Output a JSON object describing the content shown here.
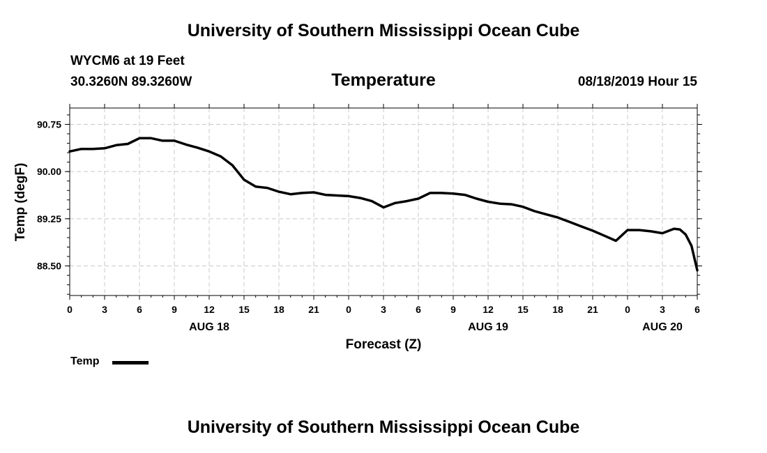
{
  "header": {
    "title": "University of Southern Mississippi Ocean Cube",
    "station": "WYCM6 at 19 Feet",
    "coords": "30.3260N 89.3260W",
    "variable": "Temperature",
    "timestamp": "08/18/2019 Hour 15"
  },
  "footer": {
    "title": "University of Southern Mississippi Ocean Cube"
  },
  "legend": {
    "label": "Temp"
  },
  "colors": {
    "line": "#000000",
    "grid": "#c8c8c8",
    "axis": "#000000"
  },
  "chart_data": {
    "type": "line",
    "title": "Temperature",
    "xlabel": "Forecast (Z)",
    "ylabel": "Temp (degF)",
    "ylim": [
      88.03,
      91.01
    ],
    "xlim": [
      0,
      54
    ],
    "grid": true,
    "legend_position": "bottom-left",
    "x_ticks": [
      {
        "x": 0,
        "label": "0"
      },
      {
        "x": 3,
        "label": "3"
      },
      {
        "x": 6,
        "label": "6"
      },
      {
        "x": 9,
        "label": "9"
      },
      {
        "x": 12,
        "label": "12"
      },
      {
        "x": 15,
        "label": "15"
      },
      {
        "x": 18,
        "label": "18"
      },
      {
        "x": 21,
        "label": "21"
      },
      {
        "x": 24,
        "label": "0"
      },
      {
        "x": 27,
        "label": "3"
      },
      {
        "x": 30,
        "label": "6"
      },
      {
        "x": 33,
        "label": "9"
      },
      {
        "x": 36,
        "label": "12"
      },
      {
        "x": 39,
        "label": "15"
      },
      {
        "x": 42,
        "label": "18"
      },
      {
        "x": 45,
        "label": "21"
      },
      {
        "x": 48,
        "label": "0"
      },
      {
        "x": 51,
        "label": "3"
      },
      {
        "x": 54,
        "label": "6"
      }
    ],
    "date_labels": [
      {
        "x": 12,
        "label": "AUG 18"
      },
      {
        "x": 36,
        "label": "AUG 19"
      },
      {
        "x": 51,
        "label": "AUG 20"
      }
    ],
    "y_ticks": [
      {
        "y": 88.5,
        "label": "88.50"
      },
      {
        "y": 89.25,
        "label": "89.25"
      },
      {
        "y": 90.0,
        "label": "90.00"
      },
      {
        "y": 90.75,
        "label": "90.75"
      }
    ],
    "series": [
      {
        "name": "Temp",
        "x": [
          0,
          1,
          2,
          3,
          4,
          5,
          6,
          7,
          8,
          9,
          10,
          11,
          12,
          13,
          14,
          15,
          16,
          17,
          18,
          19,
          20,
          21,
          22,
          23,
          24,
          25,
          26,
          27,
          28,
          29,
          30,
          31,
          32,
          33,
          34,
          35,
          36,
          37,
          38,
          39,
          40,
          41,
          42,
          43,
          44,
          45,
          46,
          47,
          48,
          49,
          50,
          51,
          52,
          52.5,
          53,
          53.5,
          54
        ],
        "y": [
          90.32,
          90.36,
          90.36,
          90.37,
          90.42,
          90.44,
          90.53,
          90.53,
          90.49,
          90.49,
          90.43,
          90.38,
          90.32,
          90.24,
          90.1,
          89.87,
          89.76,
          89.74,
          89.68,
          89.64,
          89.66,
          89.67,
          89.63,
          89.62,
          89.61,
          89.58,
          89.53,
          89.43,
          89.5,
          89.53,
          89.57,
          89.66,
          89.66,
          89.65,
          89.63,
          89.57,
          89.52,
          89.49,
          89.48,
          89.44,
          89.37,
          89.32,
          89.27,
          89.2,
          89.13,
          89.06,
          88.98,
          88.9,
          89.07,
          89.07,
          89.05,
          89.02,
          89.09,
          89.08,
          89.0,
          88.82,
          88.43
        ]
      }
    ]
  }
}
